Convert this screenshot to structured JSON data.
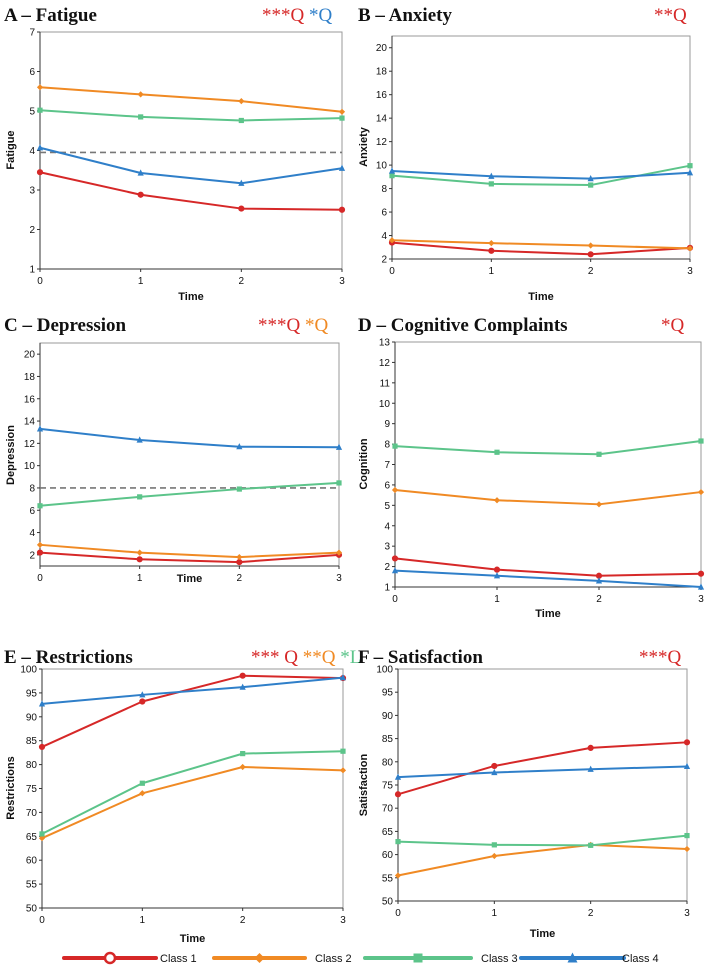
{
  "colors": {
    "class1": "#d62828",
    "class2": "#f08a24",
    "class3": "#5cc48a",
    "class4": "#2f7fc9",
    "reference_line": "#777777"
  },
  "legend": [
    {
      "name": "Class 1",
      "color": "#d62828",
      "marker": "circle"
    },
    {
      "name": "Class 2",
      "color": "#f08a24",
      "marker": "diamond"
    },
    {
      "name": "Class 3",
      "color": "#5cc48a",
      "marker": "square"
    },
    {
      "name": "Class 4",
      "color": "#2f7fc9",
      "marker": "triangle"
    }
  ],
  "chart_data": [
    {
      "id": "A",
      "type": "line",
      "title": "A – Fatigue",
      "significance": [
        {
          "text": "***Q",
          "color": "#d62828"
        },
        {
          "text": "*Q",
          "color": "#2f7fc9"
        }
      ],
      "xlabel": "Time",
      "ylabel": "Fatigue",
      "x": [
        0,
        1,
        2,
        3
      ],
      "ylim": [
        1,
        7
      ],
      "yticks": [
        1,
        2,
        3,
        4,
        5,
        6,
        7
      ],
      "reference_line": 3.95,
      "series": [
        {
          "name": "Class 1",
          "values": [
            3.45,
            2.88,
            2.53,
            2.5
          ]
        },
        {
          "name": "Class 2",
          "values": [
            5.6,
            5.42,
            5.25,
            4.98
          ]
        },
        {
          "name": "Class 3",
          "values": [
            5.02,
            4.85,
            4.76,
            4.82
          ]
        },
        {
          "name": "Class 4",
          "values": [
            4.07,
            3.43,
            3.17,
            3.55
          ]
        }
      ]
    },
    {
      "id": "B",
      "type": "line",
      "title": "B – Anxiety",
      "significance": [
        {
          "text": "**Q",
          "color": "#d62828"
        }
      ],
      "xlabel": "Time",
      "ylabel": "Anxiety",
      "x": [
        0,
        1,
        2,
        3
      ],
      "ylim": [
        2,
        21
      ],
      "yticks": [
        2,
        4,
        6,
        8,
        10,
        12,
        14,
        16,
        18,
        20
      ],
      "reference_line": null,
      "series": [
        {
          "name": "Class 1",
          "values": [
            3.4,
            2.7,
            2.4,
            2.95
          ]
        },
        {
          "name": "Class 2",
          "values": [
            3.6,
            3.35,
            3.15,
            2.9
          ]
        },
        {
          "name": "Class 3",
          "values": [
            9.1,
            8.4,
            8.3,
            9.95
          ]
        },
        {
          "name": "Class 4",
          "values": [
            9.5,
            9.05,
            8.85,
            9.35
          ]
        }
      ]
    },
    {
      "id": "C",
      "type": "line",
      "title": "C – Depression",
      "significance": [
        {
          "text": "***Q",
          "color": "#d62828"
        },
        {
          "text": "*Q",
          "color": "#f08a24"
        }
      ],
      "xlabel": "Time",
      "ylabel": "Depression",
      "x": [
        0,
        1,
        2,
        3
      ],
      "ylim": [
        1,
        21
      ],
      "yticks": [
        2,
        4,
        6,
        8,
        10,
        12,
        14,
        16,
        18,
        20
      ],
      "reference_line": 8,
      "series": [
        {
          "name": "Class 1",
          "values": [
            2.2,
            1.6,
            1.35,
            2.0
          ]
        },
        {
          "name": "Class 2",
          "values": [
            2.9,
            2.2,
            1.8,
            2.2
          ]
        },
        {
          "name": "Class 3",
          "values": [
            6.4,
            7.2,
            7.9,
            8.45
          ]
        },
        {
          "name": "Class 4",
          "values": [
            13.3,
            12.3,
            11.7,
            11.65
          ]
        }
      ]
    },
    {
      "id": "D",
      "type": "line",
      "title": "D – Cognitive Complaints",
      "significance": [
        {
          "text": "*Q",
          "color": "#d62828"
        }
      ],
      "xlabel": "Time",
      "ylabel": "Cognition",
      "x": [
        0,
        1,
        2,
        3
      ],
      "ylim": [
        1,
        13
      ],
      "yticks": [
        1,
        2,
        3,
        4,
        5,
        6,
        7,
        8,
        9,
        10,
        11,
        12,
        13
      ],
      "reference_line": null,
      "series": [
        {
          "name": "Class 1",
          "values": [
            2.4,
            1.85,
            1.55,
            1.65
          ]
        },
        {
          "name": "Class 2",
          "values": [
            5.75,
            5.25,
            5.05,
            5.65
          ]
        },
        {
          "name": "Class 3",
          "values": [
            7.9,
            7.6,
            7.5,
            8.15
          ]
        },
        {
          "name": "Class 4",
          "values": [
            1.8,
            1.55,
            1.3,
            1.0
          ]
        }
      ]
    },
    {
      "id": "E",
      "type": "line",
      "title": "E – Restrictions",
      "significance": [
        {
          "text": "*** Q",
          "color": "#d62828"
        },
        {
          "text": "**Q",
          "color": "#f08a24"
        },
        {
          "text": "*L",
          "color": "#5cc48a"
        }
      ],
      "xlabel": "Time",
      "ylabel": "Restrictions",
      "x": [
        0,
        1,
        2,
        3
      ],
      "ylim": [
        50,
        100
      ],
      "yticks": [
        50,
        55,
        60,
        65,
        70,
        75,
        80,
        85,
        90,
        95,
        100
      ],
      "reference_line": null,
      "series": [
        {
          "name": "Class 1",
          "values": [
            83.7,
            93.2,
            98.6,
            98.1
          ]
        },
        {
          "name": "Class 2",
          "values": [
            64.6,
            74.0,
            79.5,
            78.8
          ]
        },
        {
          "name": "Class 3",
          "values": [
            65.5,
            76.1,
            82.3,
            82.8
          ]
        },
        {
          "name": "Class 4",
          "values": [
            92.7,
            94.6,
            96.2,
            98.2
          ]
        }
      ]
    },
    {
      "id": "F",
      "type": "line",
      "title": "F – Satisfaction",
      "significance": [
        {
          "text": "***Q",
          "color": "#d62828"
        }
      ],
      "xlabel": "Time",
      "ylabel": "Satisfaction",
      "x": [
        0,
        1,
        2,
        3
      ],
      "ylim": [
        50,
        100
      ],
      "yticks": [
        50,
        55,
        60,
        65,
        70,
        75,
        80,
        85,
        90,
        95,
        100
      ],
      "reference_line": null,
      "series": [
        {
          "name": "Class 1",
          "values": [
            73.0,
            79.1,
            83.0,
            84.2
          ]
        },
        {
          "name": "Class 2",
          "values": [
            55.5,
            59.7,
            62.1,
            61.2
          ]
        },
        {
          "name": "Class 3",
          "values": [
            62.8,
            62.1,
            62.0,
            64.1
          ]
        },
        {
          "name": "Class 4",
          "values": [
            76.7,
            77.7,
            78.4,
            79.0
          ]
        }
      ]
    }
  ]
}
